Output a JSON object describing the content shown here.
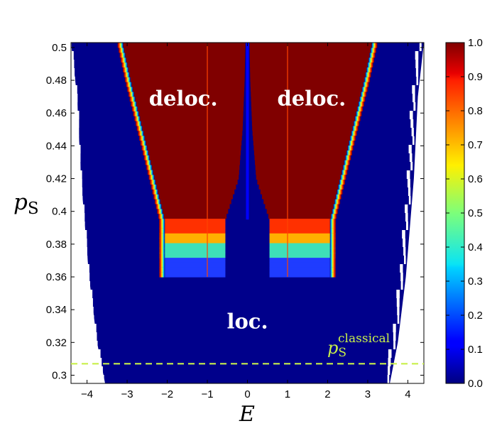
{
  "chart_data": {
    "type": "heatmap",
    "x": {
      "symbol": "E",
      "range": [
        -4.4,
        4.4
      ],
      "ticks": [
        -4,
        -3,
        -2,
        -1,
        0,
        1,
        2,
        3,
        4
      ],
      "tick_labels": [
        "−4",
        "−3",
        "−2",
        "−1",
        "0",
        "1",
        "2",
        "3",
        "4"
      ]
    },
    "y": {
      "symbol": "p",
      "subscript": "S",
      "range": [
        0.295,
        0.503
      ],
      "ticks": [
        0.3,
        0.32,
        0.34,
        0.36,
        0.38,
        0.4,
        0.42,
        0.44,
        0.46,
        0.48,
        0.5
      ],
      "tick_labels": [
        "0.3",
        "0.32",
        "0.34",
        "0.36",
        "0.38",
        "0.4",
        "0.42",
        "0.44",
        "0.46",
        "0.48",
        "0.5"
      ]
    },
    "colorbar": {
      "range": [
        0,
        1
      ],
      "colormap": "jet",
      "ticks": [
        0,
        0.1,
        0.2,
        0.3,
        0.4,
        0.5,
        0.6,
        0.7,
        0.8,
        0.9,
        1.0
      ],
      "tick_labels": [
        "0.0",
        "0.1",
        "0.2",
        "0.3",
        "0.4",
        "0.5",
        "0.6",
        "0.7",
        "0.8",
        "0.9",
        "1.0"
      ]
    },
    "boundary": [
      {
        "p": 0.395,
        "e_inner": 0.55,
        "e_outer": 2.2
      },
      {
        "p": 0.42,
        "e_inner": 0.22,
        "e_outer": 2.45
      },
      {
        "p": 0.45,
        "e_inner": 0.12,
        "e_outer": 2.75
      },
      {
        "p": 0.48,
        "e_inner": 0.07,
        "e_outer": 3.05
      },
      {
        "p": 0.503,
        "e_inner": 0.05,
        "e_outer": 3.25
      }
    ],
    "transition_band": [
      0.36,
      0.395
    ],
    "data_edge": [
      {
        "p": 0.295,
        "e": 3.55
      },
      {
        "p": 0.32,
        "e": 3.75
      },
      {
        "p": 0.36,
        "e": 3.95
      },
      {
        "p": 0.42,
        "e": 4.15
      },
      {
        "p": 0.47,
        "e": 4.25
      },
      {
        "p": 0.503,
        "e": 4.4
      }
    ],
    "reference_line": {
      "y": 0.307,
      "style": "dashed",
      "color": "#c8f04a",
      "symbol": "p",
      "subscript": "S",
      "superscript": "classical"
    },
    "annotations": [
      {
        "text": "deloc.",
        "x": -1.6,
        "y": 0.469
      },
      {
        "text": "deloc.",
        "x": 1.6,
        "y": 0.469
      },
      {
        "text": "loc.",
        "x": 0.0,
        "y": 0.333
      }
    ]
  }
}
